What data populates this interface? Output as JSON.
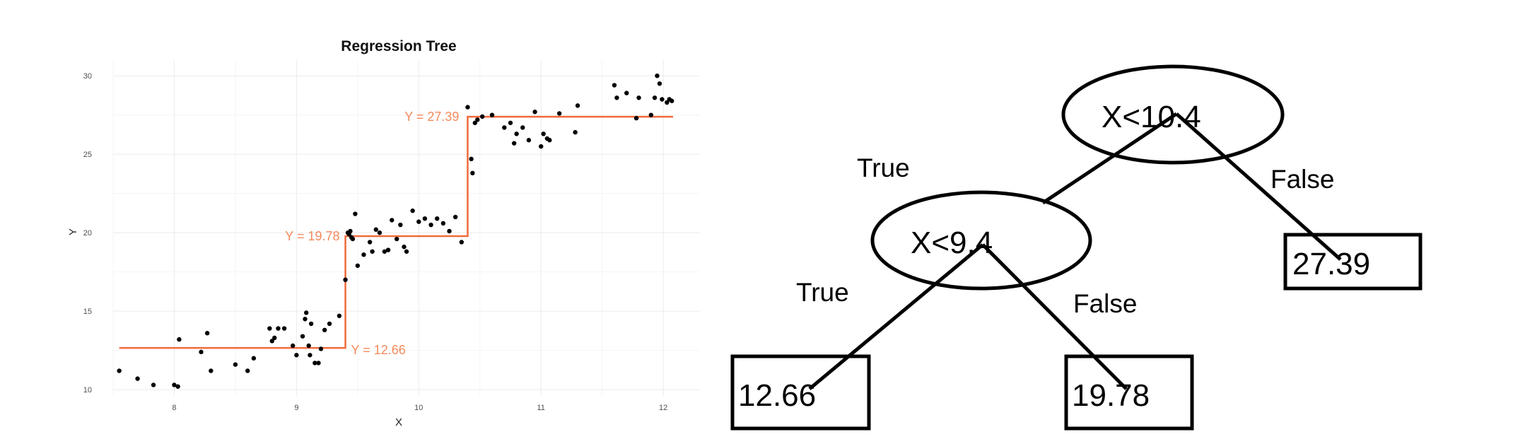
{
  "chart_data": {
    "type": "scatter",
    "title": "Regression Tree",
    "xlabel": "X",
    "ylabel": "Y",
    "xlim": [
      7.5,
      12.3
    ],
    "ylim": [
      9.6,
      31.0
    ],
    "xticks": [
      "8",
      "9",
      "10",
      "11",
      "12"
    ],
    "yticks": [
      "10",
      "15",
      "20",
      "25",
      "30"
    ],
    "grid": true,
    "colors": {
      "points": "#000000",
      "fit_line": "#f26a3a",
      "fit_label": "#f58a5c"
    },
    "points": {
      "x": [
        7.55,
        7.7,
        7.83,
        8.0,
        8.03,
        8.04,
        8.22,
        8.27,
        8.3,
        8.5,
        8.6,
        8.65,
        8.78,
        8.8,
        8.82,
        8.85,
        8.9,
        8.97,
        9.0,
        9.05,
        9.07,
        9.08,
        9.1,
        9.11,
        9.12,
        9.15,
        9.18,
        9.2,
        9.23,
        9.27,
        9.35,
        9.4,
        9.42,
        9.43,
        9.44,
        9.45,
        9.46,
        9.48,
        9.5,
        9.55,
        9.6,
        9.62,
        9.65,
        9.68,
        9.72,
        9.75,
        9.78,
        9.82,
        9.85,
        9.88,
        9.9,
        9.95,
        10.0,
        10.05,
        10.1,
        10.15,
        10.2,
        10.25,
        10.3,
        10.35,
        10.4,
        10.43,
        10.44,
        10.46,
        10.48,
        10.52,
        10.6,
        10.7,
        10.75,
        10.78,
        10.8,
        10.85,
        10.9,
        10.95,
        11.0,
        11.02,
        11.05,
        11.07,
        11.15,
        11.28,
        11.3,
        11.6,
        11.62,
        11.7,
        11.78,
        11.8,
        11.9,
        11.93,
        11.95,
        11.97,
        11.99,
        12.03,
        12.05,
        12.07
      ],
      "y": [
        11.2,
        10.7,
        10.3,
        10.3,
        10.2,
        13.2,
        12.4,
        13.6,
        11.2,
        11.6,
        11.2,
        12.0,
        13.9,
        13.1,
        13.3,
        13.9,
        13.9,
        12.8,
        12.2,
        13.4,
        14.5,
        14.9,
        12.8,
        12.2,
        14.2,
        11.7,
        11.7,
        12.6,
        13.8,
        14.2,
        14.7,
        17.0,
        20.0,
        19.9,
        20.1,
        19.7,
        19.6,
        21.2,
        17.9,
        18.6,
        19.4,
        18.8,
        20.2,
        20.0,
        18.8,
        18.9,
        20.8,
        19.6,
        20.5,
        19.1,
        18.8,
        21.4,
        20.7,
        20.9,
        20.5,
        20.9,
        20.6,
        20.1,
        21.0,
        19.4,
        28.0,
        24.7,
        23.8,
        27.0,
        27.2,
        27.4,
        27.5,
        26.7,
        27.0,
        25.7,
        26.3,
        26.7,
        25.9,
        27.7,
        25.5,
        26.3,
        26.0,
        25.9,
        27.6,
        26.4,
        28.1,
        29.4,
        28.6,
        28.9,
        27.3,
        28.6,
        27.5,
        28.6,
        30.0,
        29.5,
        28.5,
        28.3,
        28.5,
        28.4
      ]
    },
    "fit": {
      "splits": [
        9.4,
        10.4
      ],
      "levels": [
        12.66,
        19.78,
        27.39
      ],
      "x_range": [
        7.55,
        12.08
      ],
      "labels": [
        "Y = 12.66",
        "Y = 19.78",
        "Y = 27.39"
      ]
    }
  },
  "tree": {
    "root": {
      "label": "X<10.4"
    },
    "left_node": {
      "label": "X<9.4"
    },
    "leaves": [
      "12.66",
      "19.78",
      "27.39"
    ],
    "branch_labels": {
      "root_true": "True",
      "root_false": "False",
      "left_true": "True",
      "left_false": "False"
    }
  }
}
